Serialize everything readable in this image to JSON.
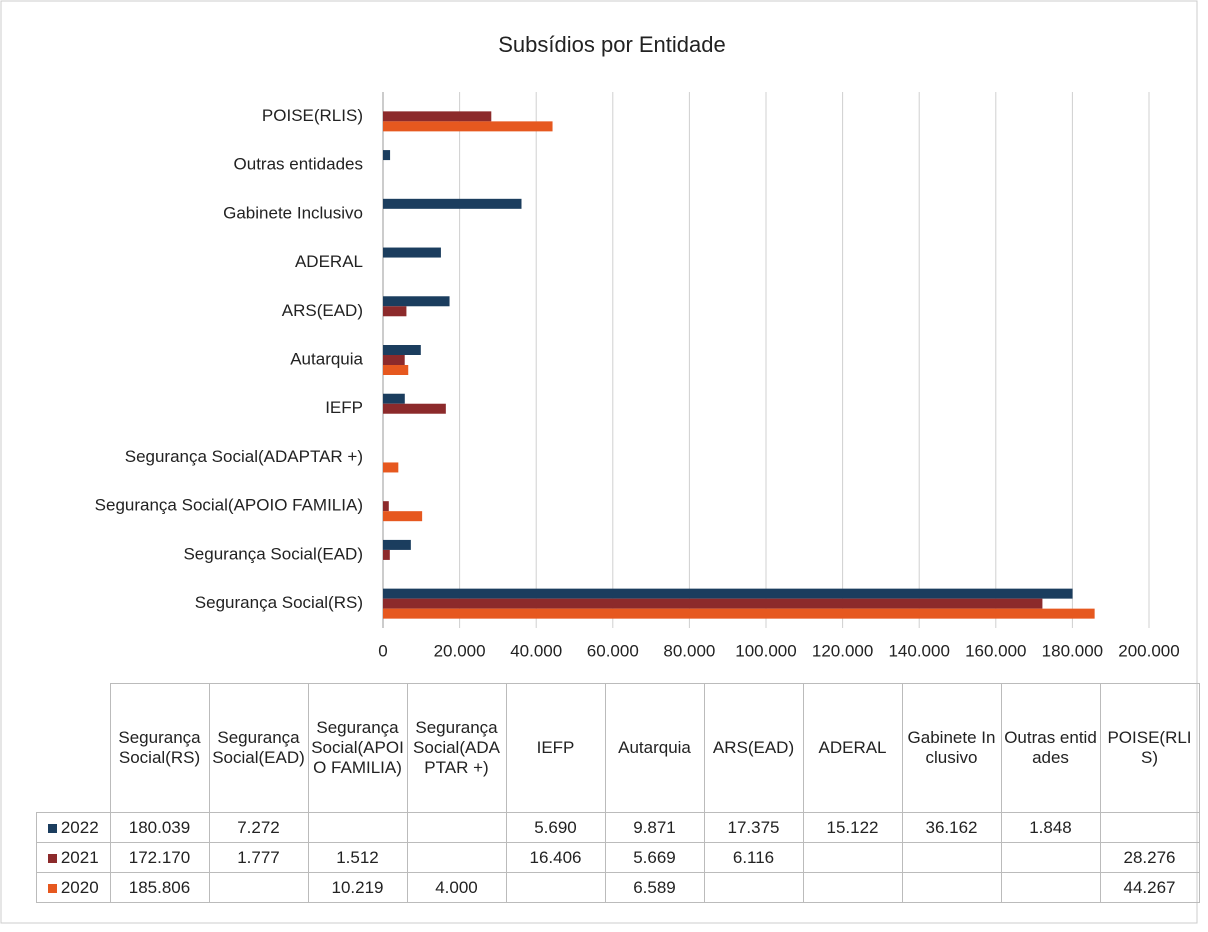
{
  "chart_data": {
    "type": "bar",
    "orientation": "horizontal",
    "title": "Subsídios por Entidade",
    "categories": [
      "Segurança Social(RS)",
      "Segurança Social(EAD)",
      "Segurança Social(APOIO FAMILIA)",
      "Segurança Social(ADAPTAR +)",
      "IEFP",
      "Autarquia",
      "ARS(EAD)",
      "ADERAL",
      "Gabinete Inclusivo",
      "Outras entidades",
      "POISE(RLIS)"
    ],
    "series": [
      {
        "name": "2022",
        "color": "#1b3d5e",
        "values": [
          180039,
          7272,
          null,
          null,
          5690,
          9871,
          17375,
          15122,
          36162,
          1848,
          null
        ],
        "value_labels": [
          "180.039",
          "7.272",
          null,
          null,
          "5.690",
          "9.871",
          "17.375",
          "15.122",
          "36.162",
          "1.848",
          null
        ]
      },
      {
        "name": "2021",
        "color": "#8c2a2b",
        "values": [
          172170,
          1777,
          1512,
          null,
          16406,
          5669,
          6116,
          null,
          null,
          null,
          28276
        ],
        "value_labels": [
          "172.170",
          "1.777",
          "1.512",
          null,
          "16.406",
          "5.669",
          "6.116",
          null,
          null,
          null,
          "28.276"
        ]
      },
      {
        "name": "2020",
        "color": "#e6581f",
        "values": [
          185806,
          null,
          10219,
          4000,
          null,
          6589,
          null,
          null,
          null,
          null,
          44267
        ],
        "value_labels": [
          "185.806",
          null,
          "10.219",
          "4.000",
          null,
          "6.589",
          null,
          null,
          null,
          null,
          "44.267"
        ]
      }
    ],
    "xlim": [
      0,
      200000
    ],
    "xticks": [
      0,
      {
        "value": 20000,
        "label": "20.000"
      },
      {
        "value": 40000,
        "label": "40.000"
      },
      {
        "value": 60000,
        "label": "60.000"
      },
      {
        "value": 80000,
        "label": "80.000"
      },
      {
        "value": 100000,
        "label": "100.000"
      },
      {
        "value": 120000,
        "label": "120.000"
      },
      {
        "value": 140000,
        "label": "140.000"
      },
      {
        "value": 160000,
        "label": "160.000"
      },
      {
        "value": 180000,
        "label": "180.000"
      },
      {
        "value": 200000,
        "label": "200.000"
      }
    ],
    "grid": true,
    "legend": "table"
  }
}
